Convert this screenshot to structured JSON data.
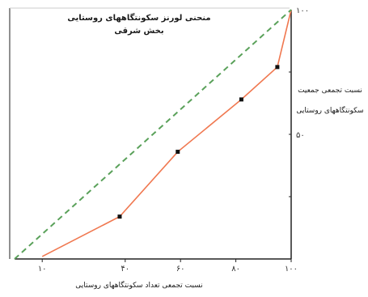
{
  "chart_data": {
    "type": "line",
    "title": "منحنی لورنز سکونتگاههای روستایی",
    "subtitle": "بخش شرقی",
    "xlabel": "نسبت تجمعی تعداد سکونتگاههای روستایی",
    "ylabel_line1": "نسبت تجمعی جمعیت",
    "ylabel_line2": "سکونتگاههای روستایی",
    "xlim": [
      0,
      100
    ],
    "ylim": [
      0,
      100
    ],
    "x_ticks": [
      {
        "value": 10,
        "label": "۱۰"
      },
      {
        "value": 40,
        "label": "۴۰"
      },
      {
        "value": 60,
        "label": "۶۰"
      },
      {
        "value": 80,
        "label": "۸۰"
      },
      {
        "value": 100,
        "label": "۱۰۰"
      }
    ],
    "y_ticks": [
      {
        "value": 100,
        "label": "۱۰۰"
      },
      {
        "value": 50,
        "label": "۵۰"
      }
    ],
    "series": [
      {
        "kind": "lorenz-curve",
        "color": "#f07850",
        "points": [
          {
            "x": 10,
            "y": 1,
            "marker": false
          },
          {
            "x": 38,
            "y": 17,
            "marker": true
          },
          {
            "x": 59,
            "y": 43,
            "marker": true
          },
          {
            "x": 82,
            "y": 64,
            "marker": true
          },
          {
            "x": 95,
            "y": 77,
            "marker": true
          },
          {
            "x": 100,
            "y": 100,
            "marker": false
          }
        ]
      },
      {
        "kind": "equality-line",
        "color": "#5aa15a",
        "dashed": true,
        "points": [
          {
            "x": 0,
            "y": 0
          },
          {
            "x": 100,
            "y": 100
          }
        ]
      }
    ],
    "grid": false,
    "legend": "none"
  }
}
